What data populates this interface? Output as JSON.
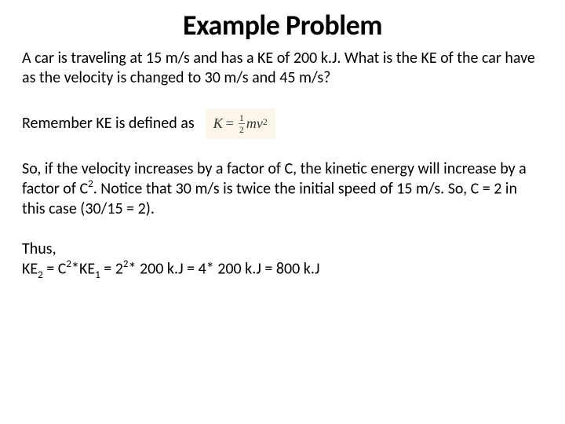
{
  "title": "Example Problem",
  "problem_text_part1": "A car is traveling at 15 m/s and has a KE of 200 k.J.  What is the KE of the car have as the velocity is changed to 30 m/s and 45 m/s?",
  "remember_text": "Remember KE is defined as",
  "formula": {
    "lhs": "K",
    "eq": "=",
    "frac_num": "1",
    "frac_den": "2",
    "m": "m",
    "v": "v",
    "exp": "2"
  },
  "explanation_prefix": "So, if the velocity increases by a factor of C, the kinetic energy will increase by a factor of C",
  "explanation_exp1": "2",
  "explanation_suffix": ".  Notice that 30 m/s is twice the initial speed of 15 m/s.  So, C = 2 in this case (30/15 = 2).",
  "thus_label": "Thus,",
  "eq_ke": "KE",
  "eq_sub2": "2",
  "eq_mid1": " = C",
  "eq_exp2a": "2",
  "eq_star_ke": "*KE",
  "eq_sub1": "1",
  "eq_mid2": " = 2",
  "eq_exp2b": "2",
  "eq_tail": "* 200 k.J = 4* 200 k.J = 800 k.J",
  "colors": {
    "background": "#ffffff",
    "text": "#000000",
    "formula_bg": "#fcf6ea"
  },
  "fontsizes": {
    "title": 36,
    "body": 20,
    "formula": 18
  }
}
